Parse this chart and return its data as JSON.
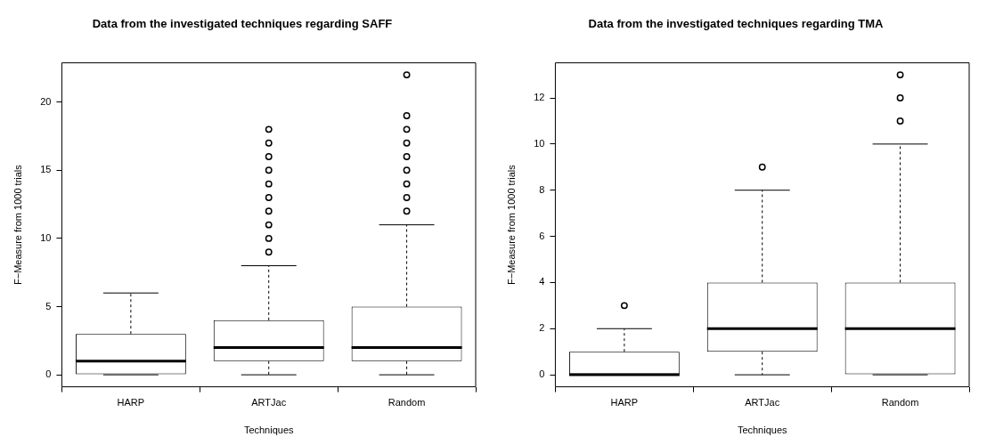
{
  "chart_data": [
    {
      "type": "box",
      "title": "Data from the investigated techniques regarding SAFF",
      "xlabel": "Techniques",
      "ylabel": "F−Measure from 1000 trials",
      "categories": [
        "HARP",
        "ARTJac",
        "Random"
      ],
      "boxes": [
        {
          "low": 0,
          "q1": 0,
          "median": 1,
          "q3": 3,
          "high": 6
        },
        {
          "low": 0,
          "q1": 1,
          "median": 2,
          "q3": 4,
          "high": 8,
          "outliers": [
            9,
            10,
            11,
            12,
            13,
            14,
            15,
            16,
            17,
            18
          ]
        },
        {
          "low": 0,
          "q1": 1,
          "median": 2,
          "q3": 5,
          "high": 11,
          "outliers": [
            12,
            13,
            14,
            15,
            16,
            17,
            18,
            19,
            22
          ]
        }
      ],
      "ylim": [
        -0.88,
        22.88
      ],
      "yticks": [
        0,
        5,
        10,
        15,
        20
      ]
    },
    {
      "type": "box",
      "title": "Data from the investigated techniques regarding TMA",
      "xlabel": "Techniques",
      "ylabel": "F−Measure from 1000 trials",
      "categories": [
        "HARP",
        "ARTJac",
        "Random"
      ],
      "boxes": [
        {
          "low": 0,
          "q1": 0,
          "median": 0,
          "q3": 1,
          "high": 2,
          "outliers": [
            3
          ]
        },
        {
          "low": 0,
          "q1": 1,
          "median": 2,
          "q3": 4,
          "high": 8,
          "outliers": [
            9
          ]
        },
        {
          "low": 0,
          "q1": 0,
          "median": 2,
          "q3": 4,
          "high": 10,
          "outliers": [
            11,
            12,
            13
          ]
        }
      ],
      "ylim": [
        -0.52,
        13.52
      ],
      "yticks": [
        0,
        2,
        4,
        6,
        8,
        10,
        12
      ]
    }
  ]
}
